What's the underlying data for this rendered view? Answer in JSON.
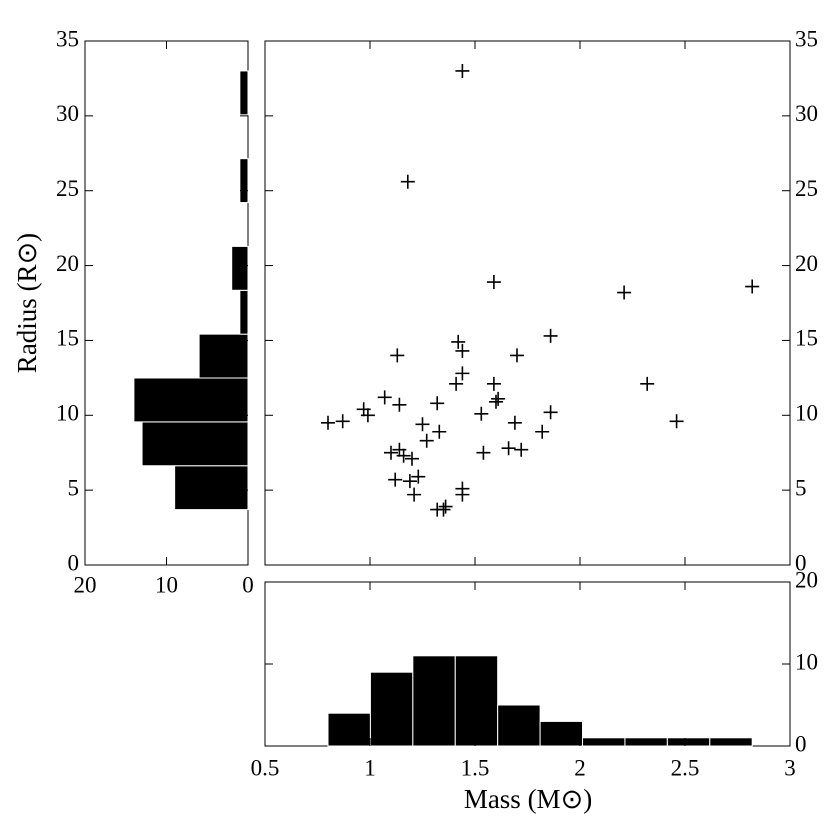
{
  "chart_data": [
    {
      "type": "histogram",
      "orientation": "horizontal",
      "ylabel": "Radius (R⊙)",
      "bins": [
        3.7,
        6.63,
        9.56,
        12.49,
        15.42,
        18.35,
        21.28,
        24.21,
        27.14,
        30.07,
        33.0
      ],
      "counts": [
        9,
        13,
        14,
        6,
        1,
        2,
        0,
        1,
        0,
        1
      ],
      "color": "#000000",
      "xlim": [
        20,
        0
      ],
      "xticks": [
        20,
        10,
        0
      ],
      "ylim": [
        0,
        35
      ],
      "yticks": [
        0,
        5,
        10,
        15,
        20,
        25,
        30,
        35
      ]
    },
    {
      "type": "scatter",
      "color": "#000000",
      "x": [
        1.44,
        1.18,
        1.59,
        2.21,
        2.82,
        1.86,
        1.13,
        1.42,
        1.44,
        1.7,
        1.44,
        1.41,
        1.59,
        2.32,
        1.61,
        1.6,
        1.07,
        1.14,
        1.32,
        0.97,
        0.99,
        1.53,
        1.86,
        0.8,
        0.87,
        1.25,
        1.69,
        2.46,
        1.33,
        1.82,
        1.27,
        1.66,
        1.72,
        1.1,
        1.14,
        1.16,
        1.54,
        1.2,
        1.12,
        1.19,
        1.23,
        1.21,
        1.44,
        1.44,
        1.32,
        1.36,
        1.35
      ],
      "y": [
        33.0,
        25.6,
        18.9,
        18.2,
        18.6,
        15.3,
        14.0,
        14.9,
        14.3,
        14.0,
        12.8,
        12.1,
        12.1,
        12.1,
        11.1,
        10.9,
        11.2,
        10.7,
        10.8,
        10.4,
        10.0,
        10.1,
        10.2,
        9.5,
        9.6,
        9.4,
        9.5,
        9.6,
        8.9,
        8.9,
        8.3,
        7.8,
        7.7,
        7.5,
        7.7,
        7.3,
        7.5,
        7.1,
        5.7,
        5.6,
        5.9,
        4.7,
        5.1,
        4.7,
        3.7,
        3.9,
        3.7
      ],
      "xlim": [
        0.5,
        3
      ],
      "xticks": [
        0.5,
        1,
        1.5,
        2,
        2.5,
        3
      ],
      "ylim": [
        0,
        35
      ],
      "yticks": [
        0,
        5,
        10,
        15,
        20,
        25,
        30,
        35
      ]
    },
    {
      "type": "histogram",
      "orientation": "vertical",
      "xlabel": "Mass (M⊙)",
      "bins": [
        0.8,
        1.002,
        1.204,
        1.406,
        1.608,
        1.81,
        2.012,
        2.214,
        2.416,
        2.618,
        2.82
      ],
      "counts": [
        4,
        9,
        11,
        11,
        5,
        3,
        1,
        1,
        1,
        1
      ],
      "color": "#000000",
      "xlim": [
        0.5,
        3
      ],
      "xticks": [
        0.5,
        1,
        1.5,
        2,
        2.5,
        3
      ],
      "ylim": [
        0,
        20
      ],
      "yticks": [
        0,
        10,
        20
      ]
    }
  ]
}
